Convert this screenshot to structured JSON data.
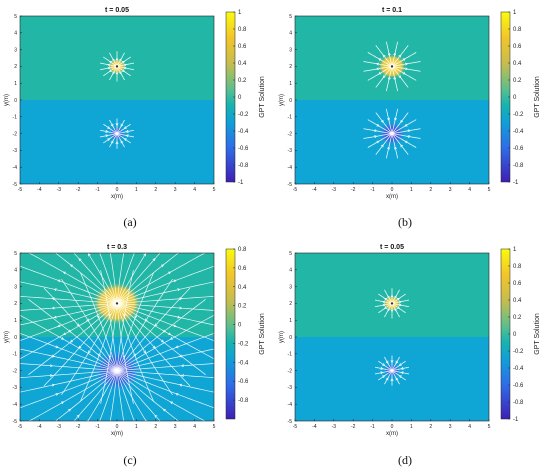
{
  "colors": {
    "field_top": "#22b6a6",
    "field_bottom": "#0fa6d6",
    "streamline": "#ffffff"
  },
  "chart_data": [
    {
      "type": "heatmap",
      "title": "t = 0.05",
      "caption": "(a)",
      "xlabel": "x(m)",
      "ylabel": "y(m)",
      "xlim": [
        -5,
        5
      ],
      "ylim": [
        -5,
        5
      ],
      "xticks": [
        -5,
        -4,
        -3,
        -2,
        -1,
        0,
        1,
        2,
        3,
        4,
        5
      ],
      "yticks": [
        -5,
        -4,
        -3,
        -2,
        -1,
        0,
        1,
        2,
        3,
        4,
        5
      ],
      "colorbar": {
        "label": "GPT Solution",
        "range": [
          -1,
          1
        ],
        "ticks": [
          1,
          0.8,
          0.6,
          0.4,
          0.2,
          0,
          -0.2,
          -0.4,
          -0.6,
          -0.8,
          -1
        ]
      },
      "sources": [
        {
          "x": 0,
          "y": 2,
          "sign": 1,
          "radius": 0.45,
          "streamline_length": 0.9
        },
        {
          "x": 0,
          "y": -2,
          "sign": -1,
          "radius": 0.45,
          "streamline_length": 0.9
        }
      ],
      "streamlines": 14
    },
    {
      "type": "heatmap",
      "title": "t = 0.1",
      "caption": "(b)",
      "xlabel": "x(m)",
      "ylabel": "y(m)",
      "xlim": [
        -5,
        5
      ],
      "ylim": [
        -5,
        5
      ],
      "xticks": [
        -5,
        -4,
        -3,
        -2,
        -1,
        0,
        1,
        2,
        3,
        4,
        5
      ],
      "yticks": [
        -5,
        -4,
        -3,
        -2,
        -1,
        0,
        1,
        2,
        3,
        4,
        5
      ],
      "colorbar": {
        "label": "GPT Solution",
        "range": [
          -1,
          1
        ],
        "ticks": [
          1,
          0.8,
          0.6,
          0.4,
          0.2,
          0,
          -0.2,
          -0.4,
          -0.6,
          -0.8,
          -1
        ]
      },
      "sources": [
        {
          "x": 0,
          "y": 2,
          "sign": 1,
          "radius": 0.75,
          "streamline_length": 1.5
        },
        {
          "x": 0,
          "y": -2,
          "sign": -1,
          "radius": 0.75,
          "streamline_length": 1.5
        }
      ],
      "streamlines": 16
    },
    {
      "type": "heatmap",
      "title": "t = 0.3",
      "caption": "(c)",
      "xlabel": "x(m)",
      "ylabel": "y(m)",
      "xlim": [
        -5,
        5
      ],
      "ylim": [
        -5,
        5
      ],
      "xticks": [
        -5,
        -4,
        -3,
        -2,
        -1,
        0,
        1,
        2,
        3,
        4,
        5
      ],
      "yticks": [
        -5,
        -4,
        -3,
        -2,
        -1,
        0,
        1,
        2,
        3,
        4,
        5
      ],
      "colorbar": {
        "label": "GPT Solution",
        "range": [
          -1,
          0.8
        ],
        "ticks": [
          0.8,
          0.6,
          0.4,
          0.2,
          0,
          -0.2,
          -0.4,
          -0.6,
          -0.8
        ]
      },
      "sources": [
        {
          "x": 0,
          "y": 2,
          "sign": 1,
          "radius": 1.3,
          "streamline_length": 6
        },
        {
          "x": 0,
          "y": -2,
          "sign": -1,
          "radius": 1.3,
          "streamline_length": 6
        }
      ],
      "streamlines": 36
    },
    {
      "type": "heatmap",
      "title": "t = 0.05",
      "caption": "(d)",
      "xlabel": "x(m)",
      "ylabel": "y(m)",
      "xlim": [
        -5,
        5
      ],
      "ylim": [
        -5,
        5
      ],
      "xticks": [
        -5,
        -4,
        -3,
        -2,
        -1,
        0,
        1,
        2,
        3,
        4,
        5
      ],
      "yticks": [
        -5,
        -4,
        -3,
        -2,
        -1,
        0,
        1,
        2,
        3,
        4,
        5
      ],
      "colorbar": {
        "label": "GPT Solution",
        "range": [
          -1,
          1
        ],
        "ticks": [
          1,
          0.8,
          0.6,
          0.4,
          0.2,
          0,
          -0.2,
          -0.4,
          -0.6,
          -0.8,
          -1
        ]
      },
      "sources": [
        {
          "x": 0,
          "y": 2,
          "sign": 1,
          "radius": 0.45,
          "streamline_length": 0.9
        },
        {
          "x": 0,
          "y": -2,
          "sign": -1,
          "radius": 0.45,
          "streamline_length": 0.9
        }
      ],
      "streamlines": 14
    }
  ]
}
